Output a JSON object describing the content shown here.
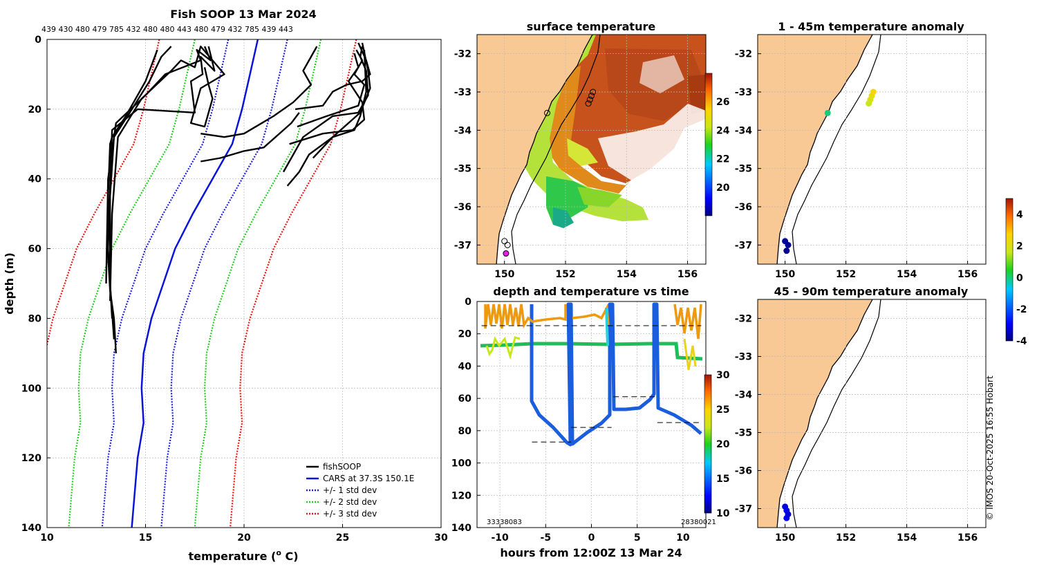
{
  "copyright": "© IMOS 20-Oct-2025 16:55 Hobart",
  "colors": {
    "fish": "#000000",
    "cars": "#0a14d8",
    "std1": "#1d1ddb",
    "std2": "#22cc22",
    "std3": "#ee1111",
    "land": "#f9c995",
    "sst_warm": "#c8501a",
    "sst_cool": "#a6e222"
  },
  "chart_data": [
    {
      "id": "profile",
      "type": "line",
      "title": "Fish SOOP 13 Mar 2024",
      "top_label": "439 430 480 479 785 432 480 480 443 480 479 432 785 439 443",
      "xlabel": "temperature (",
      "xlabel_sup": "o",
      "xlabel_end": " C)",
      "ylabel": "depth (m)",
      "xlim": [
        10,
        30
      ],
      "ylim": [
        0,
        140
      ],
      "xticks": [
        10,
        15,
        20,
        25,
        30
      ],
      "yticks": [
        0,
        20,
        40,
        60,
        80,
        100,
        120,
        140
      ],
      "legend": [
        "fishSOOP",
        "CARS at 37.3S 150.1E",
        "+/- 1 std dev",
        "+/- 2 std dev",
        "+/- 3 std dev"
      ],
      "cars": {
        "x": [
          20.7,
          20.3,
          19.9,
          19.4,
          18.4,
          17.4,
          16.5,
          15.9,
          15.3,
          14.9,
          14.8,
          14.9,
          14.6,
          14.3
        ],
        "y": [
          0,
          10,
          20,
          30,
          40,
          50,
          60,
          70,
          80,
          90,
          100,
          110,
          120,
          140
        ]
      },
      "std_offsets": [
        1.5,
        3.2,
        5.0
      ],
      "fish_segments": [
        {
          "x": [
            13.5,
            13.4,
            13.2,
            13.1,
            13.1,
            13.2,
            13.3,
            14.0,
            15.0,
            15.6
          ],
          "y": [
            90,
            80,
            72,
            62,
            45,
            30,
            28,
            22,
            12,
            3
          ]
        },
        {
          "x": [
            13.4,
            13.2,
            13.2,
            13.4,
            14.2,
            15.2,
            15.8,
            16.3
          ],
          "y": [
            86,
            70,
            45,
            28,
            21,
            12,
            5,
            2
          ]
        },
        {
          "x": [
            13.3,
            13.1,
            13.3,
            14.6,
            17.5,
            17.3,
            17.9,
            17.8,
            18.5,
            18.2
          ],
          "y": [
            80,
            60,
            26,
            20,
            21,
            12,
            10,
            5,
            9,
            2
          ]
        },
        {
          "x": [
            13.0,
            13.1,
            13.5,
            15.0,
            16.0,
            17.8,
            17.6,
            18.3,
            18.0
          ],
          "y": [
            70,
            40,
            24,
            16,
            10,
            6,
            3,
            6,
            2
          ]
        },
        {
          "x": [
            13.2,
            13.3,
            13.6,
            14.8,
            16.3,
            16.8,
            17.5,
            17.8,
            19.0,
            17.8,
            17.3,
            18.0,
            18.4,
            18.2,
            18.0
          ],
          "y": [
            75,
            50,
            28,
            17,
            9,
            6,
            8,
            2,
            10,
            14,
            24,
            25,
            17,
            13,
            8
          ]
        },
        {
          "x": [
            17.8,
            18.8,
            20.0,
            21.0,
            22.4,
            22.8
          ],
          "y": [
            35,
            34,
            32,
            31,
            24,
            21
          ]
        },
        {
          "x": [
            17.8,
            19.0,
            20.0,
            21.5,
            22.5,
            23.4,
            23.0,
            23.7
          ],
          "y": [
            27,
            28,
            27,
            22,
            18,
            13,
            9,
            2
          ]
        },
        {
          "x": [
            22.2,
            22.8,
            23.3,
            24.5,
            25.6,
            25.9,
            26.2,
            26.1
          ],
          "y": [
            42,
            38,
            33,
            28,
            26,
            22,
            15,
            3
          ]
        },
        {
          "x": [
            22.0,
            22.5,
            23.0,
            24.5,
            25.8,
            26.3,
            26.2,
            25.9,
            26.0
          ],
          "y": [
            38,
            33,
            28,
            22,
            21,
            16,
            9,
            5,
            2
          ]
        },
        {
          "x": [
            22.3,
            24.0,
            25.5,
            26.1,
            26.0,
            25.3,
            25.8,
            25.6
          ],
          "y": [
            30,
            27,
            26,
            23,
            18,
            12,
            8,
            4
          ]
        },
        {
          "x": [
            22.7,
            24.2,
            25.8,
            26.1,
            25.6,
            26.0,
            25.7
          ],
          "y": [
            25,
            22,
            19,
            13,
            10,
            6,
            3
          ]
        },
        {
          "x": [
            23.5,
            24.5,
            25.9,
            26.4,
            26.3,
            26.0
          ],
          "y": [
            34,
            28,
            21,
            14,
            9,
            1
          ]
        },
        {
          "x": [
            22.6,
            24.0,
            24.5,
            25.2,
            26.0,
            26.4,
            26.2,
            25.8
          ],
          "y": [
            20,
            19,
            15,
            13,
            12,
            10,
            6,
            1
          ]
        }
      ]
    },
    {
      "id": "sst_map",
      "type": "heatmap",
      "title": "surface temperature",
      "xlim": [
        149.1,
        156.6
      ],
      "ylim": [
        -37.5,
        -31.5
      ],
      "xticks": [
        150,
        152,
        154,
        156
      ],
      "yticks": [
        -32,
        -33,
        -34,
        -35,
        -36,
        -37
      ],
      "colorbar": {
        "min": 18,
        "max": 28,
        "ticks": [
          20,
          22,
          24,
          26
        ]
      }
    },
    {
      "id": "depth_time",
      "type": "scatter",
      "title": "depth and temperature vs time",
      "xlabel": "hours from 12:00Z 13 Mar 24",
      "xlim": [
        -12.5,
        12.5
      ],
      "ylim": [
        0,
        140
      ],
      "xticks": [
        -10,
        -5,
        0,
        5,
        10
      ],
      "yticks": [
        0,
        20,
        40,
        60,
        80,
        100,
        120,
        140
      ],
      "bottom_left_label": "33338083",
      "bottom_right_label": "28380021",
      "colorbar": {
        "min": 10,
        "max": 30,
        "ticks": [
          10,
          15,
          20,
          25,
          30
        ]
      },
      "dashed_lines": [
        {
          "x": [
            -12,
            12
          ],
          "y": 15
        },
        {
          "x": [
            -6.5,
            -2.2
          ],
          "y": 87
        },
        {
          "x": [
            -2.2,
            2.2
          ],
          "y": 78
        },
        {
          "x": [
            2.4,
            7.2
          ],
          "y": 59
        },
        {
          "x": [
            7.2,
            12
          ],
          "y": 75
        }
      ]
    },
    {
      "id": "anom_shallow",
      "type": "scatter",
      "title": "1 - 45m temperature anomaly",
      "xlim": [
        149.1,
        156.6
      ],
      "ylim": [
        -37.5,
        -31.5
      ],
      "xticks": [
        150,
        152,
        154,
        156
      ],
      "yticks": [
        -32,
        -33,
        -34,
        -35,
        -36,
        -37
      ],
      "points": [
        {
          "lon": 152.9,
          "lat": -33.0,
          "v": 2.6
        },
        {
          "lon": 152.85,
          "lat": -33.1,
          "v": 2.3
        },
        {
          "lon": 152.8,
          "lat": -33.2,
          "v": 2.0
        },
        {
          "lon": 152.75,
          "lat": -33.3,
          "v": 1.6
        },
        {
          "lon": 151.4,
          "lat": -33.55,
          "v": 0.0
        },
        {
          "lon": 150.0,
          "lat": -36.9,
          "v": -3.8
        },
        {
          "lon": 150.1,
          "lat": -37.0,
          "v": -3.8
        },
        {
          "lon": 150.05,
          "lat": -37.15,
          "v": -3.9
        }
      ]
    },
    {
      "id": "anom_deep",
      "type": "scatter",
      "title": "45 - 90m temperature anomaly",
      "xlim": [
        149.1,
        156.6
      ],
      "ylim": [
        -37.5,
        -31.5
      ],
      "xticks": [
        150,
        152,
        154,
        156
      ],
      "yticks": [
        -32,
        -33,
        -34,
        -35,
        -36,
        -37
      ],
      "points": [
        {
          "lon": 150.0,
          "lat": -36.95,
          "v": -3.2
        },
        {
          "lon": 150.05,
          "lat": -37.05,
          "v": -3.0
        },
        {
          "lon": 150.1,
          "lat": -37.15,
          "v": -3.3
        },
        {
          "lon": 150.05,
          "lat": -37.25,
          "v": -3.1
        }
      ]
    },
    {
      "id": "anom_colorbar",
      "type": "heatmap",
      "colorbar": {
        "min": -4,
        "max": 5,
        "ticks": [
          -4,
          -2,
          0,
          2,
          4
        ]
      }
    }
  ]
}
